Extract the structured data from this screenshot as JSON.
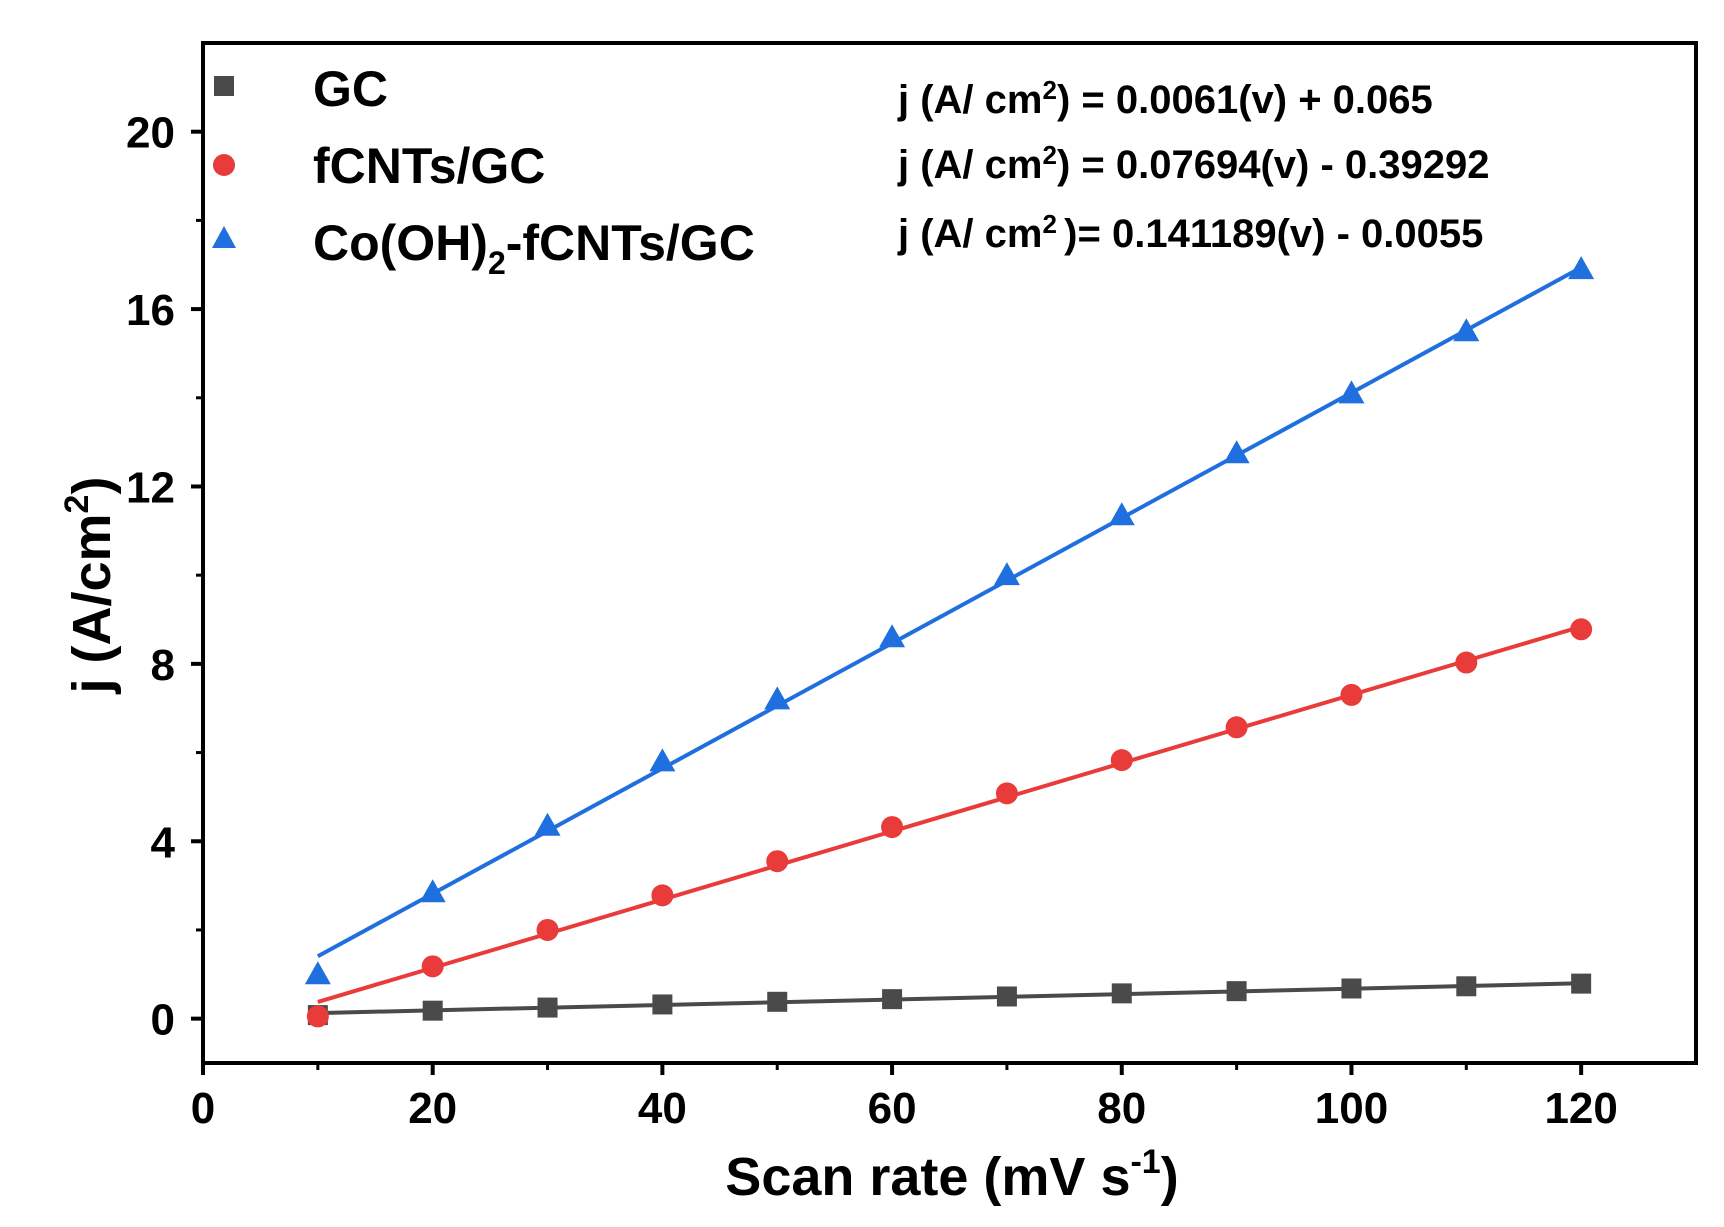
{
  "chart_data": {
    "type": "scatter",
    "title": "",
    "xlabel": "Scan rate  (mV s",
    "xlabel_sup": "-1",
    "xlabel_close": ")",
    "ylabel": "j (A/cm",
    "ylabel_sup": "2",
    "ylabel_close": ")",
    "xlim": [
      0,
      130
    ],
    "ylim": [
      -1,
      22
    ],
    "x_ticks": [
      0,
      20,
      40,
      60,
      80,
      100,
      120
    ],
    "x_tick_labels": [
      "0",
      "20",
      "40",
      "60",
      "80",
      "100",
      "120"
    ],
    "y_ticks": [
      0,
      4,
      8,
      12,
      16,
      20
    ],
    "y_tick_labels": [
      "0",
      "4",
      "8",
      "12",
      "16",
      "20"
    ],
    "grid": false,
    "legend_position": "top-left",
    "x": [
      10,
      20,
      30,
      40,
      50,
      60,
      70,
      80,
      90,
      100,
      110,
      120
    ],
    "series": [
      {
        "name": "GC",
        "legend_label": "GC",
        "marker": "square",
        "color": "#4a4a4a",
        "values": [
          0.08,
          0.18,
          0.25,
          0.32,
          0.38,
          0.44,
          0.5,
          0.57,
          0.62,
          0.68,
          0.73,
          0.79
        ],
        "fit": {
          "slope": 0.0061,
          "intercept": 0.065
        }
      },
      {
        "name": "fCNTs/GC",
        "legend_label": "fCNTs/GC",
        "marker": "circle",
        "color": "#ea3b3b",
        "values": [
          0.05,
          1.18,
          2.0,
          2.78,
          3.55,
          4.32,
          5.08,
          5.83,
          6.57,
          7.3,
          8.03,
          8.78
        ],
        "fit": {
          "slope": 0.07694,
          "intercept": -0.39292
        }
      },
      {
        "name": "Co(OH)2-fCNTs/GC",
        "legend_label": "Co(OH)",
        "legend_sub": "2",
        "legend_suffix": "-fCNTs/GC",
        "marker": "triangle",
        "color": "#1f6fde",
        "values": [
          1.0,
          2.85,
          4.35,
          5.8,
          7.2,
          8.6,
          10.0,
          11.35,
          12.75,
          14.1,
          15.5,
          16.9
        ],
        "fit": {
          "slope": 0.141189,
          "intercept": -0.0055
        }
      }
    ],
    "annotations": [
      {
        "lhs": "j (A/ cm",
        "sup": "2",
        "rhs": ") = 0.0061(v) + 0.065"
      },
      {
        "lhs": "j (A/ cm",
        "sup": "2",
        "rhs": ") = 0.07694(v) - 0.39292"
      },
      {
        "lhs": "j (A/ cm",
        "sup": "2 ",
        "rhs": ")= 0.141189(v) - 0.0055"
      }
    ]
  }
}
